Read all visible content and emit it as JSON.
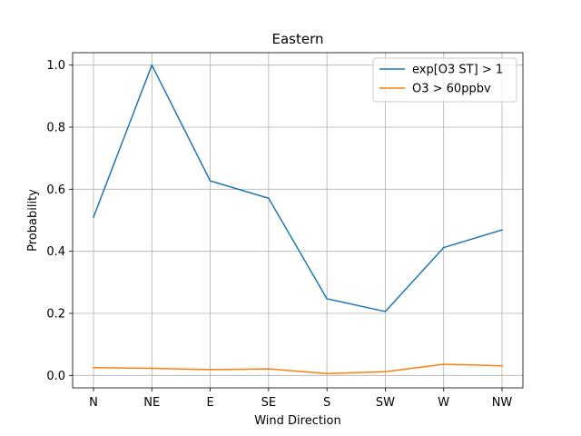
{
  "chart_data": {
    "type": "line",
    "title": "Eastern",
    "xlabel": "Wind Direction",
    "ylabel": "Probability",
    "categories": [
      "N",
      "NE",
      "E",
      "SE",
      "S",
      "SW",
      "W",
      "NW"
    ],
    "ylim": [
      -0.04,
      1.04
    ],
    "yticks": [
      "0.0",
      "0.2",
      "0.4",
      "0.6",
      "0.8",
      "1.0"
    ],
    "grid": true,
    "legend_position": "top-right",
    "series": [
      {
        "name": "exp[O3 ST] > 1",
        "color": "#1f77b4",
        "values": [
          0.51,
          1.0,
          0.627,
          0.571,
          0.247,
          0.206,
          0.412,
          0.469
        ]
      },
      {
        "name": "O3 > 60ppbv",
        "color": "#ff7f0e",
        "values": [
          0.025,
          0.023,
          0.019,
          0.021,
          0.006,
          0.012,
          0.036,
          0.031
        ]
      }
    ]
  }
}
